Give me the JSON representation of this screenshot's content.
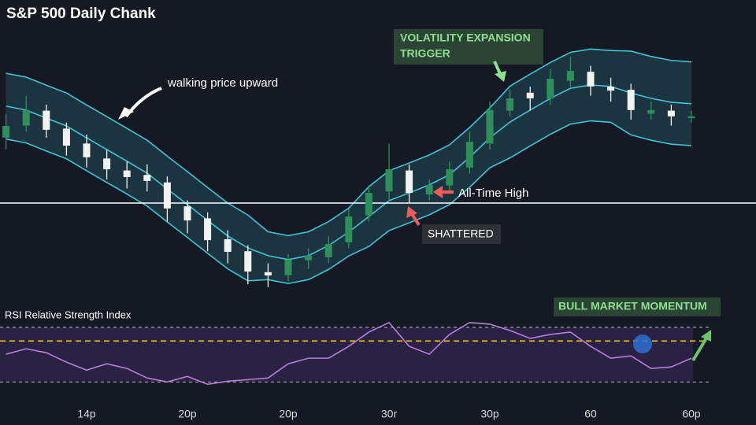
{
  "chart_data": {
    "type": "candlestick",
    "title": "S&P 500 Daily Chank",
    "categories": [
      null,
      null,
      null,
      null,
      "14p",
      null,
      null,
      null,
      null,
      "20p",
      null,
      null,
      null,
      null,
      "20p",
      null,
      null,
      null,
      null,
      "30r",
      null,
      null,
      null,
      null,
      "30p",
      null,
      null,
      null,
      null,
      "60",
      null,
      null,
      null,
      null,
      "60p"
    ],
    "open": [
      54,
      58,
      63,
      57,
      52,
      47,
      43,
      41.5,
      39,
      31,
      27,
      20,
      16,
      9,
      8,
      13,
      14,
      19,
      28,
      36,
      43,
      35,
      38,
      44,
      52,
      63,
      69,
      67,
      73,
      76,
      71,
      70,
      62,
      63,
      60.5
    ],
    "high": [
      62,
      68,
      65,
      59,
      55,
      50,
      46,
      45,
      41,
      33,
      29,
      23,
      18,
      12,
      15,
      17,
      21,
      30,
      38,
      52,
      45,
      40,
      46,
      56,
      66,
      70,
      71,
      77,
      81,
      78,
      74,
      72,
      66,
      65,
      63
    ],
    "low": [
      50,
      56,
      54,
      48,
      44,
      40,
      37,
      36,
      26,
      22,
      16,
      12,
      5,
      4,
      6,
      10,
      12,
      17,
      26,
      33,
      32,
      33,
      36,
      42,
      50,
      61,
      63,
      65,
      71,
      68,
      66,
      60,
      60,
      58,
      59
    ],
    "close": [
      57.9,
      63.2,
      56.6,
      51.3,
      47.4,
      43.4,
      40.8,
      39.5,
      30.3,
      26.3,
      19.7,
      15.8,
      9.2,
      7.9,
      13.2,
      14.5,
      18.4,
      27.6,
      35.5,
      43.4,
      35.5,
      38.2,
      43.4,
      52.6,
      63.2,
      67.1,
      67.1,
      73.7,
      76.3,
      71.1,
      69.7,
      63.2,
      63.2,
      61.1,
      61.1
    ],
    "channel": {
      "upper": [
        75.5,
        74.2,
        71.5,
        68.9,
        64.9,
        61,
        57.1,
        53.1,
        47.8,
        42.6,
        37.3,
        32.1,
        28.1,
        22.5,
        21.2,
        22.5,
        25.9,
        30.4,
        37.6,
        42.9,
        45.5,
        48.2,
        51.6,
        57.4,
        63.9,
        71.2,
        75.2,
        79.1,
        82.5,
        83.6,
        83.1,
        82.9,
        81.1,
        79.8,
        79.3
      ],
      "middle": [
        64.5,
        63.2,
        60.5,
        57.9,
        53.9,
        50,
        46.1,
        42.1,
        36.8,
        31.6,
        26.3,
        21.1,
        17.1,
        14.5,
        13.2,
        14.5,
        17.9,
        22.4,
        27.6,
        32.9,
        35.5,
        38.2,
        41.6,
        47.4,
        53.9,
        59.2,
        63.2,
        67.1,
        70.5,
        71.6,
        71.1,
        68.9,
        67.1,
        65.8,
        65.3
      ],
      "lower": [
        53.5,
        52.2,
        49.5,
        46.9,
        42.9,
        39,
        35.1,
        31.1,
        25.8,
        20.6,
        15.3,
        10.1,
        6.1,
        6.5,
        5.2,
        6.5,
        9.9,
        14.4,
        17.6,
        22.9,
        25.5,
        28.2,
        31.6,
        37.4,
        43.9,
        47.2,
        51.2,
        55.1,
        58.5,
        59.6,
        59.1,
        54.9,
        53.1,
        51.8,
        51.3
      ],
      "color": "#3fc4d4"
    },
    "ylim": [
      0,
      100
    ],
    "up_color": "#2f8f5b",
    "down_color": "#f2f2f2",
    "ath_line": 32.1,
    "annotations": {
      "walking": "walking price upward",
      "volatility": [
        "VOLATILITY EXPANSION",
        "TRIGGER"
      ],
      "ath": "All-Time High",
      "shattered": "SHATTERED",
      "bull": "BULL MARKET MOMENTUM"
    },
    "rsi": {
      "title": "RSI Relative Strength Index",
      "values": [
        50.3,
        54.3,
        51.4,
        44.5,
        38.7,
        43.3,
        39.9,
        32.9,
        30,
        34.1,
        28.3,
        30.6,
        31.7,
        32.9,
        43.3,
        47.4,
        47.4,
        56.1,
        66.5,
        73.5,
        56.1,
        50.3,
        64.8,
        73.5,
        72.3,
        67.7,
        61.9,
        64.8,
        66.5,
        56.1,
        47.4,
        49.1,
        39.9,
        41,
        47.4
      ],
      "ylim": [
        25,
        78
      ],
      "levels": [
        70,
        60,
        30
      ],
      "color": "#b57edc"
    }
  }
}
